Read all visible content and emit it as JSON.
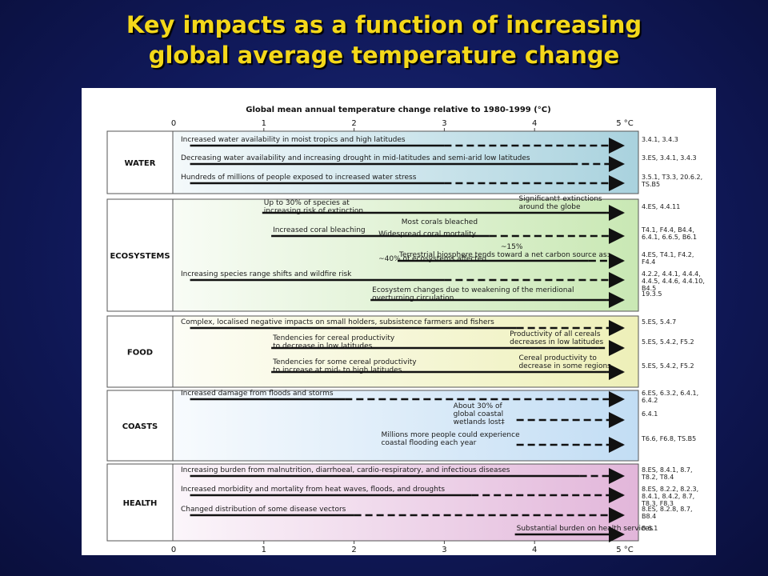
{
  "slide": {
    "title_line1": "Key impacts as a function of increasing",
    "title_line2": "global average temperature change"
  },
  "colors": {
    "background": "#10195a",
    "title": "#f4d81a",
    "water": "#b9dde8",
    "ecosystems": "#d3ecc6",
    "food": "#f0f2c6",
    "coasts": "#cfe6f8",
    "health": "#e6c4e0"
  },
  "chart_data": {
    "type": "timeline",
    "title": "Global mean annual temperature change relative to 1980-1999 (°C)",
    "x_ticks": [
      "0",
      "1",
      "2",
      "3",
      "4",
      "5 °C"
    ],
    "xlim": [
      0,
      5
    ],
    "sectors": [
      {
        "name": "WATER",
        "impacts": [
          {
            "lines": [
              "Increased water availability in moist tropics and high latitudes"
            ],
            "solid": [
              0.2,
              3.0
            ],
            "dashed": [
              3.0,
              5.0
            ],
            "ref": [
              "3.4.1, 3.4.3"
            ]
          },
          {
            "lines": [
              "Decreasing water availability and increasing drought in mid-latitudes and semi-arid low latitudes"
            ],
            "solid": [
              0.2,
              4.4
            ],
            "dashed": [
              4.4,
              5.0
            ],
            "ref": [
              "3.ES, 3.4.1, 3.4.3"
            ]
          },
          {
            "lines": [
              "Hundreds of millions of people exposed to increased water stress"
            ],
            "solid": [
              0.2,
              3.0
            ],
            "dashed": [
              3.0,
              5.0
            ],
            "ref": [
              "3.5.1, T3.3, 20.6.2,",
              "TS.B5"
            ]
          }
        ]
      },
      {
        "name": "ECOSYSTEMS",
        "impacts": [
          {
            "lines": [
              "Up to 30% of species at",
              "increasing risk of extinction"
            ],
            "label2": [
              "Significant† extinctions",
              "around the globe"
            ],
            "solid": [
              1.0,
              4.8
            ],
            "dashed": [
              4.8,
              5.0
            ],
            "ref": [
              "4.ES, 4.4.11"
            ]
          },
          {
            "lines": [
              "Increased coral bleaching"
            ],
            "label2": [
              "Most corals bleached"
            ],
            "label3": [
              "Widespread coral mortality"
            ],
            "solid": [
              1.1,
              3.5
            ],
            "dashed": [
              3.5,
              5.0
            ],
            "ref": [
              "T4.1, F4.4, B4.4,",
              "6.4.1, 6.6.5, B6.1"
            ]
          },
          {
            "lines": [
              "Terrestrial biosphere tends toward a net carbon source as:"
            ],
            "label2": [
              "~15%"
            ],
            "label3": [
              "~40% of ecosystems affected"
            ],
            "solid": [
              2.5,
              4.6
            ],
            "dashed": [
              4.6,
              5.0
            ],
            "ref": [
              "4.ES, T4.1, F4.2,",
              "F4.4"
            ]
          },
          {
            "lines": [
              "Increasing species range shifts and wildfire risk"
            ],
            "solid": [
              0.2,
              3.0
            ],
            "dashed": [
              3.0,
              5.0
            ],
            "ref": [
              "4.2.2, 4.4.1, 4.4.4,",
              "4.4.5, 4.4.6, 4.4.10,",
              "B4.5"
            ]
          },
          {
            "lines": [
              "Ecosystem changes due to weakening of the meridional",
              "overturning circulation"
            ],
            "solid": [
              2.2,
              4.8
            ],
            "dashed": [
              4.8,
              5.0
            ],
            "ref": [
              "19.3.5"
            ]
          }
        ]
      },
      {
        "name": "FOOD",
        "impacts": [
          {
            "lines": [
              "Complex, localised negative impacts on small holders, subsistence farmers and fishers"
            ],
            "solid": [
              0.2,
              3.8
            ],
            "dashed": [
              3.8,
              5.0
            ],
            "ref": [
              "5.ES, 5.4.7"
            ]
          },
          {
            "lines": [
              "Tendencies for cereal productivity",
              "to decrease in low latitudes"
            ],
            "label2": [
              "Productivity of all cereals",
              "decreases in low latitudes"
            ],
            "solid": [
              1.1,
              4.7
            ],
            "dashed": [
              4.7,
              5.0
            ],
            "ref": [
              "5.ES, 5.4.2, F5.2"
            ]
          },
          {
            "lines": [
              "Tendencies for some cereal productivity",
              "to increase at mid- to high latitudes"
            ],
            "label2": [
              "Cereal productivity to",
              "decrease in some regions"
            ],
            "solid": [
              1.1,
              4.8
            ],
            "dashed": [
              4.8,
              5.0
            ],
            "ref": [
              "5.ES, 5.4.2, F5.2"
            ]
          }
        ]
      },
      {
        "name": "COASTS",
        "impacts": [
          {
            "lines": [
              "Increased damage from floods and storms"
            ],
            "solid": [
              0.2,
              1.9
            ],
            "dashed": [
              1.9,
              5.0
            ],
            "ref": [
              "6.ES, 6.3.2, 6.4.1,",
              "6.4.2"
            ]
          },
          {
            "lines": [
              "About 30% of",
              "global coastal",
              "wetlands lost‡"
            ],
            "solid": [
              3.1,
              3.1
            ],
            "dashed": [
              3.8,
              5.0
            ],
            "ref": [
              "6.4.1"
            ]
          },
          {
            "lines": [
              "Millions more people could experience",
              "coastal flooding each year"
            ],
            "solid": [
              2.3,
              2.3
            ],
            "dashed": [
              3.8,
              5.0
            ],
            "ref": [
              "T6.6, F6.8, TS.B5"
            ]
          }
        ]
      },
      {
        "name": "HEALTH",
        "impacts": [
          {
            "lines": [
              "Increasing burden from malnutrition, diarrhoeal, cardio-respiratory, and infectious diseases"
            ],
            "solid": [
              0.2,
              4.5
            ],
            "dashed": [
              4.5,
              5.0
            ],
            "ref": [
              "8.ES, 8.4.1, 8.7,",
              "T8.2, T8.4"
            ]
          },
          {
            "lines": [
              "Increased morbidity and mortality from heat waves, floods, and droughts"
            ],
            "solid": [
              0.2,
              3.3
            ],
            "dashed": [
              3.3,
              5.0
            ],
            "ref": [
              "8.ES, 8.2.2, 8.2.3,",
              "8.4.1, 8.4.2, 8.7,",
              "T8.3, F8.3"
            ]
          },
          {
            "lines": [
              "Changed distribution of some disease vectors"
            ],
            "solid": [
              0.2,
              2.0
            ],
            "dashed": [
              2.0,
              5.0
            ],
            "ref": [
              "8.ES, 8.2.8, 8.7,",
              "B8.4"
            ]
          },
          {
            "lines": [
              "Substantial burden on health services"
            ],
            "solid": [
              3.8,
              4.9
            ],
            "dashed": [
              4.9,
              5.0
            ],
            "ref": [
              "8.6.1"
            ]
          }
        ]
      }
    ]
  }
}
